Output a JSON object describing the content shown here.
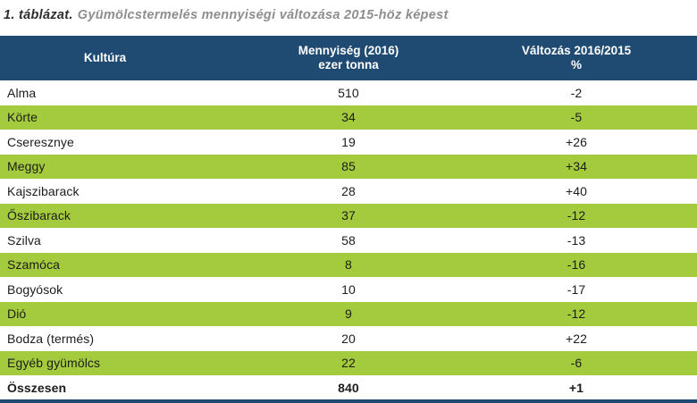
{
  "title": {
    "prefix": "1. táblázat.",
    "text": "Gyümölcstermelés mennyiségi változása 2015-höz képest"
  },
  "colors": {
    "header_bg": "#1f4b72",
    "row_alt_bg": "#a3cb3d",
    "title_gray": "#8e8e8e",
    "text_dark": "#1c1c1c"
  },
  "table": {
    "columns": [
      {
        "label": "Kultúra",
        "sub": ""
      },
      {
        "label": "Mennyiség (2016)",
        "sub": "ezer tonna"
      },
      {
        "label": "Változás 2016/2015",
        "sub": "%"
      }
    ],
    "rows": [
      {
        "kultura": "Alma",
        "mennyiseg": "510",
        "valtozas": "-2"
      },
      {
        "kultura": "Körte",
        "mennyiseg": "34",
        "valtozas": "-5"
      },
      {
        "kultura": "Cseresznye",
        "mennyiseg": "19",
        "valtozas": "+26"
      },
      {
        "kultura": "Meggy",
        "mennyiseg": "85",
        "valtozas": "+34"
      },
      {
        "kultura": "Kajszibarack",
        "mennyiseg": "28",
        "valtozas": "+40"
      },
      {
        "kultura": "Őszibarack",
        "mennyiseg": "37",
        "valtozas": "-12"
      },
      {
        "kultura": "Szilva",
        "mennyiseg": "58",
        "valtozas": "-13"
      },
      {
        "kultura": "Szamóca",
        "mennyiseg": "8",
        "valtozas": "-16"
      },
      {
        "kultura": "Bogyósok",
        "mennyiseg": "10",
        "valtozas": "-17"
      },
      {
        "kultura": "Dió",
        "mennyiseg": "9",
        "valtozas": "-12"
      },
      {
        "kultura": "Bodza (termés)",
        "mennyiseg": "20",
        "valtozas": "+22"
      },
      {
        "kultura": "Egyéb gyümölcs",
        "mennyiseg": "22",
        "valtozas": "-6"
      }
    ],
    "total_row": {
      "kultura": "Összesen",
      "mennyiseg": "840",
      "valtozas": "+1"
    }
  }
}
